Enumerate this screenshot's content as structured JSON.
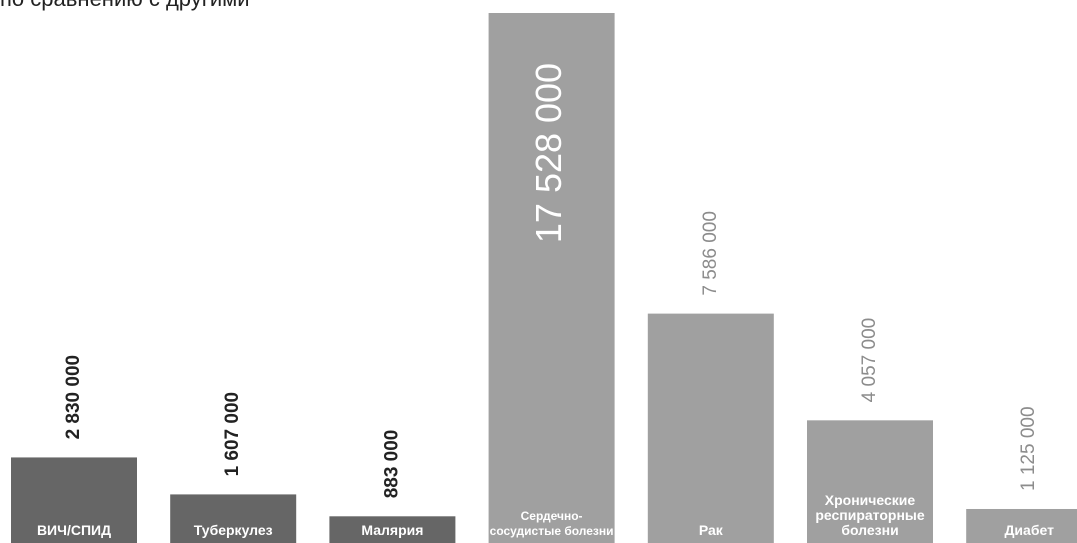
{
  "heading_fragment": "по сравнению с другими",
  "colors": {
    "dark": "#666666",
    "light": "#a0a0a0",
    "label_on_bar": "#ffffff"
  },
  "chart_data": {
    "type": "bar",
    "title": "",
    "xlabel": "",
    "ylabel": "",
    "ylim": [
      0,
      17528000
    ],
    "grid": false,
    "categories": [
      "ВИЧ/СПИД",
      "Туберкулез",
      "Малярия",
      "Сердечно- сосудистые болезни",
      "Рак",
      "Хронические респираторные болезни",
      "Диабет"
    ],
    "category_lines": [
      [
        "ВИЧ/СПИД"
      ],
      [
        "Туберкулез"
      ],
      [
        "Малярия"
      ],
      [
        "Сердечно-",
        "сосудистые болезни"
      ],
      [
        "Рак"
      ],
      [
        "Хронические",
        "респираторные",
        "болезни"
      ],
      [
        "Диабет"
      ]
    ],
    "values": [
      2830000,
      1607000,
      883000,
      17528000,
      7586000,
      4057000,
      1125000
    ],
    "value_labels": [
      "2 830 000",
      "1 607 000",
      "883 000",
      "17 528 000",
      "7 586 000",
      "4 057 000",
      "1 125 000"
    ],
    "group": [
      "dark",
      "dark",
      "dark",
      "light",
      "light",
      "light",
      "light"
    ]
  }
}
